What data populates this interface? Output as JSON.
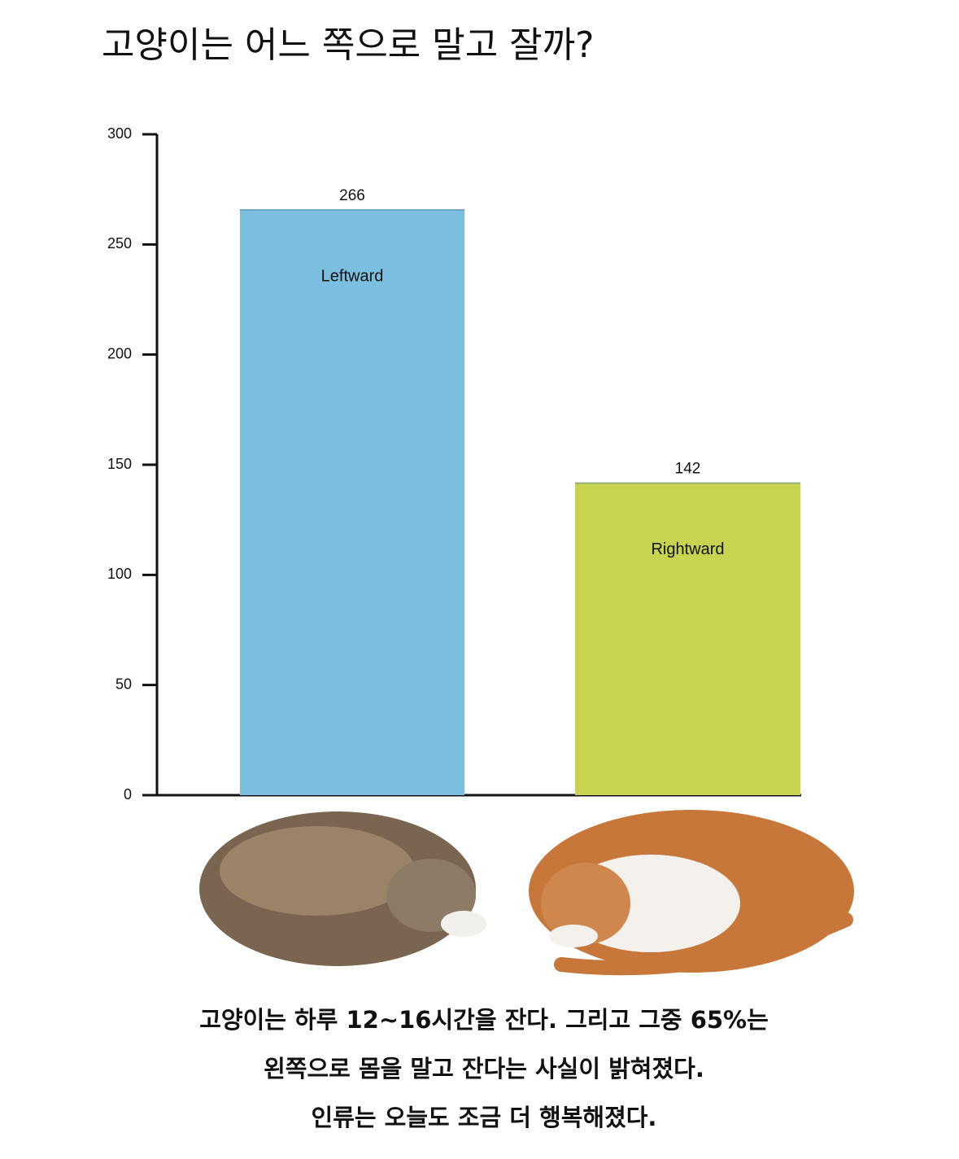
{
  "chart_data": {
    "type": "bar",
    "title": "고양이는 어느 쪽으로 말고 잘까?",
    "categories": [
      "Leftward",
      "Rightward"
    ],
    "values": [
      266,
      142
    ],
    "colors": [
      "#7bbfe0",
      "#c8d44f"
    ],
    "ylim": [
      0,
      300
    ],
    "yticks": [
      0,
      50,
      100,
      150,
      200,
      250,
      300
    ],
    "caption": [
      "고양이는 하루 12~16시간을 잔다. 그리고 그중 65%는",
      "왼쪽으로 몸을 말고 잔다는 사실이 밝혀졌다.",
      "인류는 오늘도 조금 더 행복해졌다."
    ]
  }
}
